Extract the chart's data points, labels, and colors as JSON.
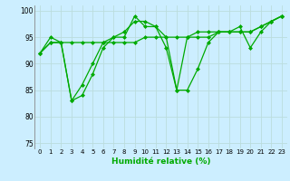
{
  "title": "",
  "xlabel": "Humidité relative (%)",
  "ylabel": "",
  "background_color": "#cceeff",
  "grid_color": "#bbdddd",
  "line_color": "#00aa00",
  "marker_color": "#00aa00",
  "xlim": [
    -0.5,
    23.5
  ],
  "ylim": [
    74,
    101
  ],
  "yticks": [
    75,
    80,
    85,
    90,
    95,
    100
  ],
  "xticks": [
    0,
    1,
    2,
    3,
    4,
    5,
    6,
    7,
    8,
    9,
    10,
    11,
    12,
    13,
    14,
    15,
    16,
    17,
    18,
    19,
    20,
    21,
    22,
    23
  ],
  "series": [
    {
      "x": [
        0,
        1,
        2,
        3,
        4,
        5,
        6,
        7,
        8,
        9,
        10,
        11,
        12,
        13,
        14,
        15,
        16,
        17,
        18,
        19,
        20,
        21,
        22,
        23
      ],
      "y": [
        92,
        94,
        94,
        83,
        84,
        88,
        93,
        95,
        96,
        98,
        98,
        97,
        93,
        85,
        95,
        96,
        96,
        96,
        96,
        97,
        93,
        96,
        98,
        99
      ]
    },
    {
      "x": [
        0,
        1,
        2,
        3,
        4,
        5,
        6,
        7,
        8,
        9,
        10,
        11,
        12,
        13,
        14,
        15,
        16,
        17,
        18,
        19,
        20,
        21,
        22,
        23
      ],
      "y": [
        92,
        94,
        94,
        83,
        86,
        90,
        94,
        95,
        95,
        99,
        97,
        97,
        95,
        85,
        85,
        89,
        94,
        96,
        96,
        96,
        96,
        97,
        98,
        99
      ]
    },
    {
      "x": [
        0,
        1,
        2,
        3,
        4,
        5,
        6,
        7,
        8,
        9,
        10,
        11,
        12,
        13,
        14,
        15,
        16,
        17,
        18,
        19,
        20,
        21,
        22,
        23
      ],
      "y": [
        92,
        95,
        94,
        94,
        94,
        94,
        94,
        94,
        94,
        94,
        95,
        95,
        95,
        95,
        95,
        95,
        95,
        96,
        96,
        96,
        96,
        97,
        98,
        99
      ]
    }
  ]
}
